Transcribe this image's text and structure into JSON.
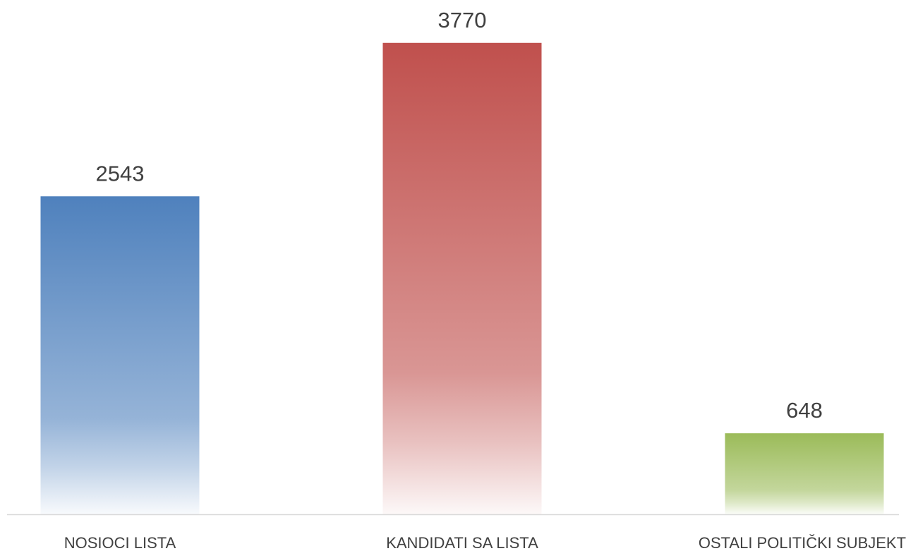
{
  "chart_data": {
    "type": "bar",
    "categories": [
      "NOSIOCI LISTA",
      "KANDIDATI SA LISTA",
      "OSTALI POLITIČKI SUBJEKTI"
    ],
    "values": [
      2543,
      3770,
      648
    ],
    "colors": [
      "#4f81bd",
      "#c0504d",
      "#9bbb59"
    ],
    "ylim": [
      0,
      4000
    ]
  }
}
